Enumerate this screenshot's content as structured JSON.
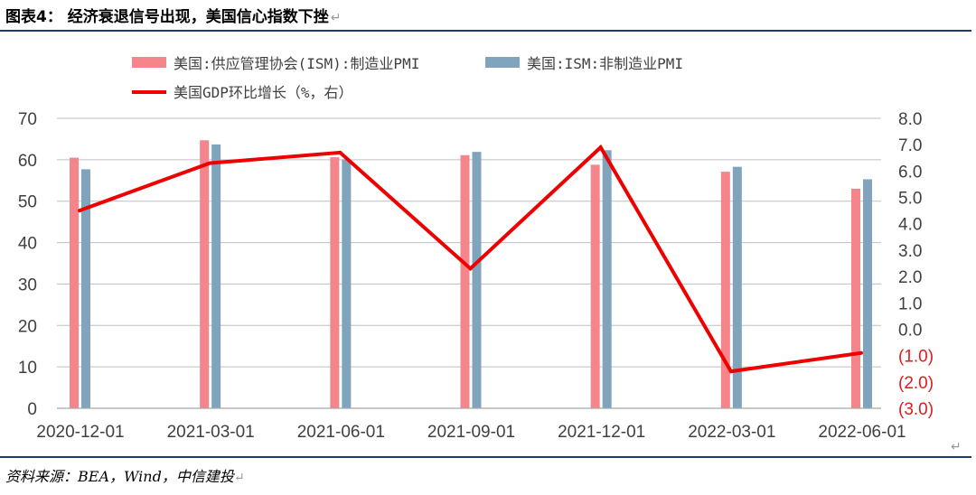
{
  "header": {
    "title": "图表4： 经济衰退信号出现，美国信心指数下挫",
    "return_mark": "↵"
  },
  "footer": {
    "source": "资料来源：BEA，Wind，中信建投",
    "return_mark": "↵"
  },
  "colors": {
    "manufacturing": "#f4858a",
    "services": "#7fa4bc",
    "gdp": "#ee0000",
    "grid": "#bfbfbf",
    "rule": "#1f3b73",
    "negative_tick": "#e31a1c"
  },
  "chart_data": {
    "type": "bar",
    "title": "",
    "xlabel": "",
    "ylabel": "",
    "categories": [
      "2020-12-01",
      "2021-03-01",
      "2021-06-01",
      "2021-09-01",
      "2021-12-01",
      "2022-03-01",
      "2022-06-01"
    ],
    "ylim": [
      0,
      70
    ],
    "y_ticks": [
      "0",
      "10",
      "20",
      "30",
      "40",
      "50",
      "60",
      "70"
    ],
    "y2lim": [
      -3.0,
      8.0
    ],
    "y2_ticks": [
      "(3.0)",
      "(2.0)",
      "(1.0)",
      "0.0",
      "1.0",
      "2.0",
      "3.0",
      "4.0",
      "5.0",
      "6.0",
      "7.0",
      "8.0"
    ],
    "grid": true,
    "legend_position": "top",
    "series": [
      {
        "name": "美国:供应管理协会(ISM):制造业PMI",
        "type": "bar",
        "axis": "left",
        "values": [
          60.5,
          64.7,
          60.6,
          61.1,
          58.8,
          57.1,
          53.0
        ]
      },
      {
        "name": "美国:ISM:非制造业PMI",
        "type": "bar",
        "axis": "left",
        "values": [
          57.7,
          63.7,
          60.1,
          61.9,
          62.3,
          58.3,
          55.3
        ]
      },
      {
        "name": "美国GDP环比增长（%，右）",
        "type": "line",
        "axis": "right",
        "values": [
          4.5,
          6.3,
          6.7,
          2.3,
          6.9,
          -1.6,
          -0.9
        ]
      }
    ]
  }
}
